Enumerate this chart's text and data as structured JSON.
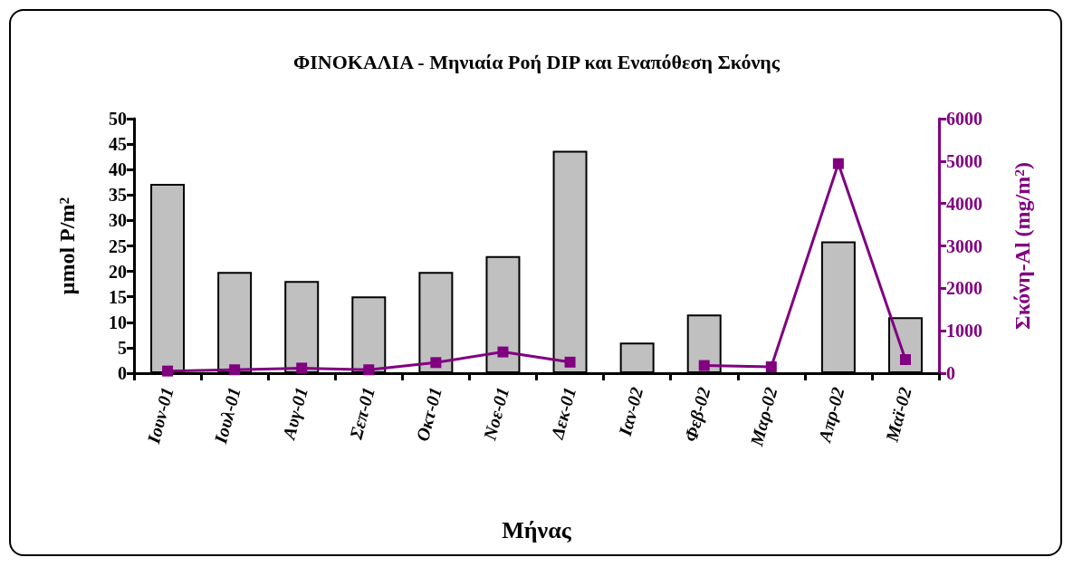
{
  "chart_data": {
    "type": "bar",
    "title": "ΦΙΝΟΚΑΛΙΑ - Μηνιαία Ροή DIP και Εναπόθεση Σκόνης",
    "xlabel": "Μήνας",
    "ylabel": "μmol P/m$^{2}$",
    "y2label": "Σκόνη-Al (mg/m$^{2}$)",
    "categories": [
      "Ιουν-01",
      "Ιουλ-01",
      "Αυγ-01",
      "Σεπ-01",
      "Οκτ-01",
      "Νοε-01",
      "Δεκ-01",
      "Ιαν-02",
      "Φεβ-02",
      "Μαρ-02",
      "Απρ-02",
      "Μαϊ-02"
    ],
    "series": [
      {
        "color": "#c0c0c0",
        "values": [
          37.2,
          19.9,
          18.1,
          15.1,
          19.9,
          23.0,
          43.7,
          6.0,
          11.5,
          null,
          25.9,
          11.0
        ]
      },
      {
        "type": "line",
        "axis": "y2",
        "color": "#800080",
        "marker": "square",
        "values": [
          50,
          80,
          120,
          80,
          250,
          500,
          260,
          null,
          180,
          150,
          4940,
          320
        ]
      }
    ],
    "ylim": [
      0,
      50
    ],
    "yticks": [
      0,
      5,
      10,
      15,
      20,
      25,
      30,
      35,
      40,
      45,
      50
    ],
    "y2lim": [
      0,
      6000
    ],
    "y2ticks": [
      0,
      1000,
      2000,
      3000,
      4000,
      5000,
      6000
    ],
    "grid": false
  }
}
